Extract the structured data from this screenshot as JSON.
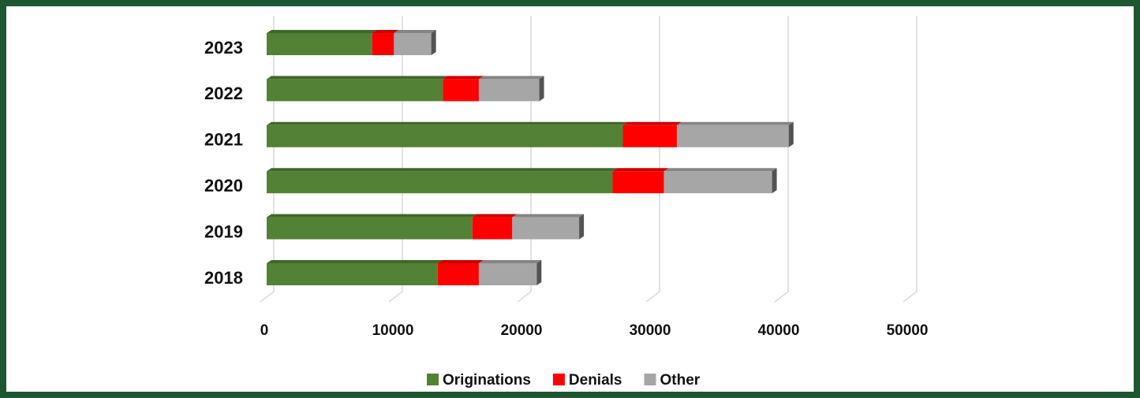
{
  "chart_data": {
    "type": "bar",
    "orientation": "horizontal",
    "stacked": true,
    "categories": [
      "2018",
      "2019",
      "2020",
      "2021",
      "2022",
      "2023"
    ],
    "series": [
      {
        "name": "Originations",
        "color": "#538135",
        "values": [
          13300,
          16000,
          26900,
          27700,
          13700,
          8200
        ]
      },
      {
        "name": "Denials",
        "color": "#ff0000",
        "values": [
          3200,
          3100,
          4000,
          4200,
          2800,
          1700
        ]
      },
      {
        "name": "Other",
        "color": "#a6a6a6",
        "values": [
          4500,
          5200,
          8400,
          8700,
          4700,
          2900
        ]
      }
    ],
    "xlim": [
      0,
      50000
    ],
    "xticks": [
      0,
      10000,
      20000,
      30000,
      40000,
      50000
    ],
    "grid": true,
    "legend": "bottom"
  }
}
